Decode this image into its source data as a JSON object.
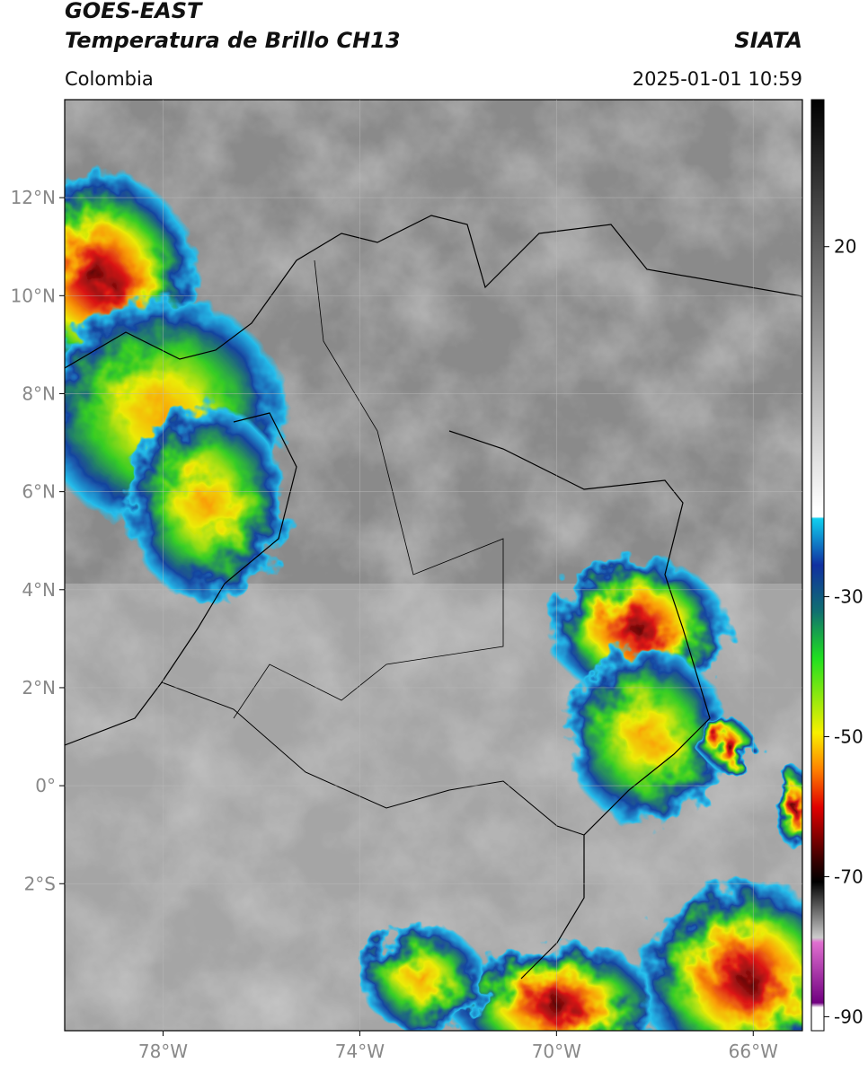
{
  "header": {
    "satellite": "GOES-EAST",
    "product": "Temperatura de Brillo CH13",
    "source": "SIATA",
    "region": "Colombia",
    "datetime": "2025-01-01 10:59"
  },
  "map": {
    "xlim": [
      -80,
      -65
    ],
    "ylim": [
      -5,
      14
    ],
    "xticks": [
      {
        "value": -78,
        "label": "78°W"
      },
      {
        "value": -74,
        "label": "74°W"
      },
      {
        "value": -70,
        "label": "70°W"
      },
      {
        "value": -66,
        "label": "66°W"
      }
    ],
    "yticks": [
      {
        "value": 12,
        "label": "12°N"
      },
      {
        "value": 10,
        "label": "10°N"
      },
      {
        "value": 8,
        "label": "8°N"
      },
      {
        "value": 6,
        "label": "6°N"
      },
      {
        "value": 4,
        "label": "4°N"
      },
      {
        "value": 2,
        "label": "2°N"
      },
      {
        "value": 0,
        "label": "0°"
      },
      {
        "value": -2,
        "label": "2°S"
      }
    ],
    "grid": true
  },
  "colorbar": {
    "lim": [
      -92,
      41
    ],
    "ticks": [
      20,
      -30,
      -50,
      -70,
      -90
    ]
  }
}
